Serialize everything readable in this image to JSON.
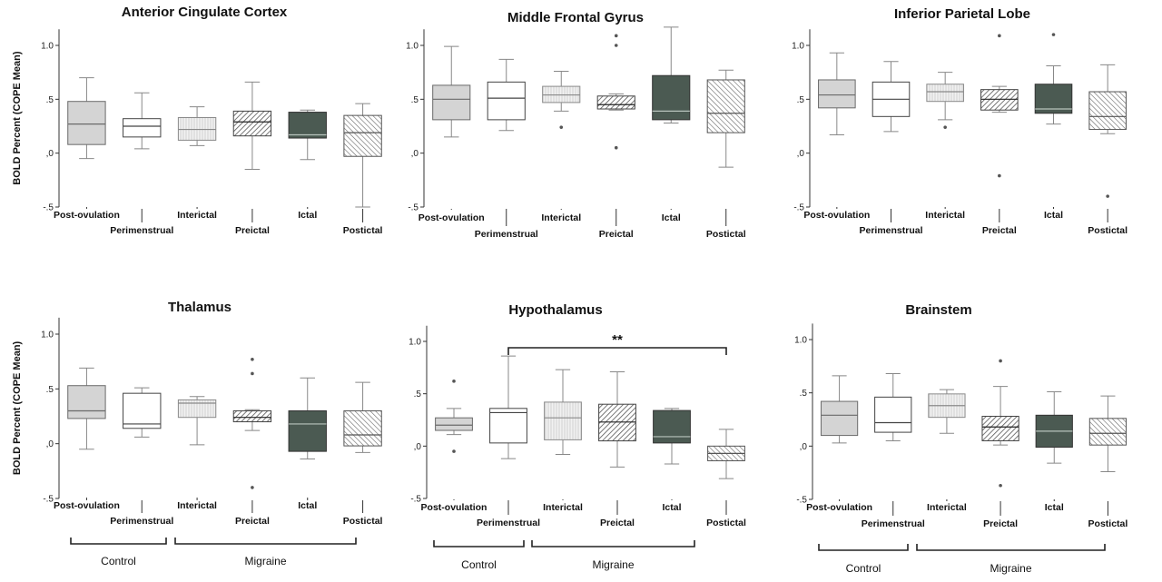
{
  "figure": {
    "y_axis_label": "BOLD Percent (COPE Mean)",
    "groups": [
      "Control",
      "Migraine"
    ],
    "significance_marker": "**"
  },
  "chart_data": [
    {
      "type": "box",
      "title": "Anterior Cingulate Cortex",
      "ylabel": "BOLD Percent (COPE Mean)",
      "ylim": [
        -0.5,
        1.15
      ],
      "yticks": [
        "-.5",
        ",0",
        ".5",
        "1.0"
      ],
      "categories": [
        "Post-ovulation",
        "Perimenstrual",
        "Interictal",
        "Preictal",
        "Ictal",
        "Postictal"
      ],
      "boxes": [
        {
          "category": "Post-ovulation",
          "min": -0.05,
          "q1": 0.08,
          "median": 0.27,
          "q3": 0.48,
          "max": 0.7,
          "outliers": []
        },
        {
          "category": "Perimenstrual",
          "min": 0.04,
          "q1": 0.15,
          "median": 0.25,
          "q3": 0.32,
          "max": 0.56,
          "outliers": []
        },
        {
          "category": "Interictal",
          "min": 0.07,
          "q1": 0.12,
          "median": 0.22,
          "q3": 0.33,
          "max": 0.43,
          "outliers": []
        },
        {
          "category": "Preictal",
          "min": -0.15,
          "q1": 0.16,
          "median": 0.29,
          "q3": 0.39,
          "max": 0.66,
          "outliers": []
        },
        {
          "category": "Ictal",
          "min": -0.06,
          "q1": 0.14,
          "median": 0.17,
          "q3": 0.38,
          "max": 0.4,
          "outliers": []
        },
        {
          "category": "Postictal",
          "min": -0.5,
          "q1": -0.03,
          "median": 0.19,
          "q3": 0.35,
          "max": 0.46,
          "outliers": []
        }
      ]
    },
    {
      "type": "box",
      "title": "Middle Frontal Gyrus",
      "ylabel": "",
      "ylim": [
        -0.5,
        1.15
      ],
      "yticks": [
        "-.5",
        ",0",
        ".5",
        "1.0"
      ],
      "categories": [
        "Post-ovulation",
        "Perimenstrual",
        "Interictal",
        "Preictal",
        "Ictal",
        "Postictal"
      ],
      "boxes": [
        {
          "category": "Post-ovulation",
          "min": 0.15,
          "q1": 0.31,
          "median": 0.5,
          "q3": 0.63,
          "max": 0.99,
          "outliers": []
        },
        {
          "category": "Perimenstrual",
          "min": 0.21,
          "q1": 0.31,
          "median": 0.51,
          "q3": 0.66,
          "max": 0.87,
          "outliers": []
        },
        {
          "category": "Interictal",
          "min": 0.39,
          "q1": 0.47,
          "median": 0.54,
          "q3": 0.62,
          "max": 0.76,
          "outliers": [
            0.24
          ]
        },
        {
          "category": "Preictal",
          "min": 0.4,
          "q1": 0.41,
          "median": 0.45,
          "q3": 0.53,
          "max": 0.55,
          "outliers": [
            1.09,
            1.0,
            0.05
          ]
        },
        {
          "category": "Ictal",
          "min": 0.28,
          "q1": 0.31,
          "median": 0.39,
          "q3": 0.72,
          "max": 1.17,
          "outliers": []
        },
        {
          "category": "Postictal",
          "min": -0.13,
          "q1": 0.19,
          "median": 0.37,
          "q3": 0.68,
          "max": 0.77,
          "outliers": []
        }
      ]
    },
    {
      "type": "box",
      "title": "Inferior Parietal Lobe",
      "ylabel": "",
      "ylim": [
        -0.5,
        1.15
      ],
      "yticks": [
        "-.5",
        ",0",
        ".5",
        "1.0"
      ],
      "categories": [
        "Post-ovulation",
        "Perimenstrual",
        "Interictal",
        "Preictal",
        "Ictal",
        "Postictal"
      ],
      "boxes": [
        {
          "category": "Post-ovulation",
          "min": 0.17,
          "q1": 0.42,
          "median": 0.54,
          "q3": 0.68,
          "max": 0.93,
          "outliers": []
        },
        {
          "category": "Perimenstrual",
          "min": 0.2,
          "q1": 0.34,
          "median": 0.5,
          "q3": 0.66,
          "max": 0.85,
          "outliers": []
        },
        {
          "category": "Interictal",
          "min": 0.31,
          "q1": 0.48,
          "median": 0.57,
          "q3": 0.64,
          "max": 0.75,
          "outliers": [
            0.24
          ]
        },
        {
          "category": "Preictal",
          "min": 0.38,
          "q1": 0.4,
          "median": 0.5,
          "q3": 0.59,
          "max": 0.62,
          "outliers": [
            1.09,
            -0.21
          ]
        },
        {
          "category": "Ictal",
          "min": 0.27,
          "q1": 0.37,
          "median": 0.41,
          "q3": 0.64,
          "max": 0.81,
          "outliers": [
            1.1
          ]
        },
        {
          "category": "Postictal",
          "min": 0.18,
          "q1": 0.22,
          "median": 0.34,
          "q3": 0.57,
          "max": 0.82,
          "outliers": [
            -0.4
          ]
        }
      ]
    },
    {
      "type": "box",
      "title": "Thalamus",
      "ylabel": "BOLD Percent (COPE Mean)",
      "ylim": [
        -0.5,
        1.15
      ],
      "yticks": [
        "-.5",
        ",0",
        ".5",
        "1.0"
      ],
      "categories": [
        "Post-ovulation",
        "Perimenstrual",
        "Interictal",
        "Preictal",
        "Ictal",
        "Postictal"
      ],
      "boxes": [
        {
          "category": "Post-ovulation",
          "min": -0.05,
          "q1": 0.23,
          "median": 0.3,
          "q3": 0.53,
          "max": 0.69,
          "outliers": []
        },
        {
          "category": "Perimenstrual",
          "min": 0.06,
          "q1": 0.14,
          "median": 0.18,
          "q3": 0.46,
          "max": 0.51,
          "outliers": []
        },
        {
          "category": "Interictal",
          "min": -0.01,
          "q1": 0.24,
          "median": 0.37,
          "q3": 0.4,
          "max": 0.43,
          "outliers": []
        },
        {
          "category": "Preictal",
          "min": 0.12,
          "q1": 0.2,
          "median": 0.24,
          "q3": 0.3,
          "max": 0.31,
          "outliers": [
            0.77,
            0.64,
            -0.4
          ]
        },
        {
          "category": "Ictal",
          "min": -0.14,
          "q1": -0.07,
          "median": 0.18,
          "q3": 0.3,
          "max": 0.6,
          "outliers": []
        },
        {
          "category": "Postictal",
          "min": -0.08,
          "q1": -0.02,
          "median": 0.08,
          "q3": 0.3,
          "max": 0.56,
          "outliers": []
        }
      ]
    },
    {
      "type": "box",
      "title": "Hypothalamus",
      "ylabel": "",
      "ylim": [
        -0.5,
        1.15
      ],
      "yticks": [
        "-.5",
        ",0",
        ".5",
        "1.0"
      ],
      "categories": [
        "Post-ovulation",
        "Perimenstrual",
        "Interictal",
        "Preictal",
        "Ictal",
        "Postictal"
      ],
      "significance": {
        "from": "Perimenstrual",
        "to": "Postictal",
        "label": "**"
      },
      "boxes": [
        {
          "category": "Post-ovulation",
          "min": 0.11,
          "q1": 0.15,
          "median": 0.2,
          "q3": 0.27,
          "max": 0.36,
          "outliers": [
            0.62,
            -0.05
          ]
        },
        {
          "category": "Perimenstrual",
          "min": -0.12,
          "q1": 0.03,
          "median": 0.32,
          "q3": 0.36,
          "max": 0.86,
          "outliers": []
        },
        {
          "category": "Interictal",
          "min": -0.08,
          "q1": 0.06,
          "median": 0.27,
          "q3": 0.42,
          "max": 0.73,
          "outliers": []
        },
        {
          "category": "Preictal",
          "min": -0.2,
          "q1": 0.05,
          "median": 0.23,
          "q3": 0.4,
          "max": 0.71,
          "outliers": []
        },
        {
          "category": "Ictal",
          "min": -0.17,
          "q1": 0.03,
          "median": 0.09,
          "q3": 0.34,
          "max": 0.36,
          "outliers": []
        },
        {
          "category": "Postictal",
          "min": -0.31,
          "q1": -0.14,
          "median": -0.07,
          "q3": 0.0,
          "max": 0.16,
          "outliers": []
        }
      ]
    },
    {
      "type": "box",
      "title": "Brainstem",
      "ylabel": "",
      "ylim": [
        -0.5,
        1.15
      ],
      "yticks": [
        "-.5",
        ",0",
        ".5",
        "1.0"
      ],
      "categories": [
        "Post-ovulation",
        "Perimenstrual",
        "Interictal",
        "Preictal",
        "Ictal",
        "Postictal"
      ],
      "boxes": [
        {
          "category": "Post-ovulation",
          "min": 0.03,
          "q1": 0.1,
          "median": 0.29,
          "q3": 0.42,
          "max": 0.66,
          "outliers": []
        },
        {
          "category": "Perimenstrual",
          "min": 0.05,
          "q1": 0.13,
          "median": 0.22,
          "q3": 0.46,
          "max": 0.68,
          "outliers": []
        },
        {
          "category": "Interictal",
          "min": 0.12,
          "q1": 0.27,
          "median": 0.38,
          "q3": 0.49,
          "max": 0.53,
          "outliers": []
        },
        {
          "category": "Preictal",
          "min": 0.01,
          "q1": 0.05,
          "median": 0.18,
          "q3": 0.28,
          "max": 0.56,
          "outliers": [
            0.8,
            -0.37
          ]
        },
        {
          "category": "Ictal",
          "min": -0.16,
          "q1": -0.01,
          "median": 0.14,
          "q3": 0.29,
          "max": 0.51,
          "outliers": []
        },
        {
          "category": "Postictal",
          "min": -0.24,
          "q1": 0.01,
          "median": 0.12,
          "q3": 0.26,
          "max": 0.47,
          "outliers": []
        }
      ]
    }
  ]
}
